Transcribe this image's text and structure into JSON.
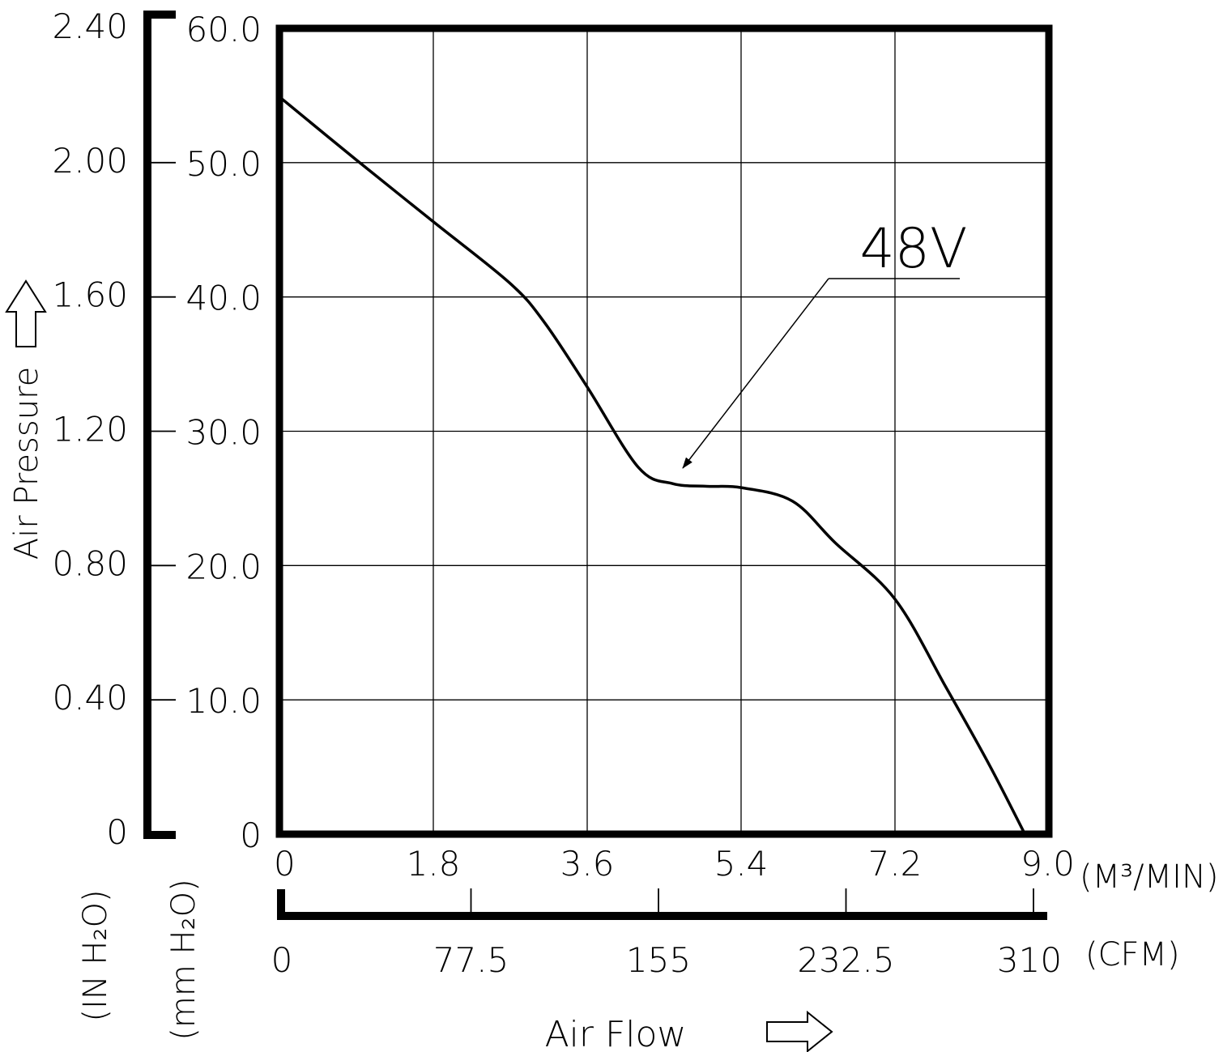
{
  "chart_data": {
    "type": "line",
    "xlabel": "Air Flow",
    "ylabel": "Air Pressure",
    "x_unit_primary": "(M³/MIN)",
    "x_unit_secondary": "(CFM)",
    "y_unit_primary": "(mm H₂O)",
    "y_unit_secondary": "(IN H₂O)",
    "xlim": [
      0,
      9.0
    ],
    "ylim": [
      0,
      60.0
    ],
    "x_ticks": [
      "0",
      "1.8",
      "3.6",
      "5.4",
      "7.2",
      "9.0"
    ],
    "x_ticks_secondary": [
      "0",
      "77.5",
      "155",
      "232.5",
      "310"
    ],
    "y_ticks": [
      "0",
      "10.0",
      "20.0",
      "30.0",
      "40.0",
      "50.0",
      "60.0"
    ],
    "y_ticks_secondary": [
      "0",
      "0.40",
      "0.80",
      "1.20",
      "1.60",
      "2.00",
      "2.40"
    ],
    "grid": true,
    "annotation": "48V",
    "series": [
      {
        "name": "48V",
        "x": [
          0,
          0.9,
          1.8,
          2.7,
          3.1,
          3.6,
          4.2,
          4.6,
          5.0,
          5.4,
          6.0,
          6.5,
          7.2,
          7.8,
          8.3,
          8.72
        ],
        "y": [
          54.9,
          50.2,
          45.6,
          41.0,
          38.1,
          33.3,
          27.3,
          26.1,
          25.9,
          25.8,
          24.8,
          21.7,
          17.5,
          10.9,
          5.2,
          0
        ]
      }
    ]
  }
}
